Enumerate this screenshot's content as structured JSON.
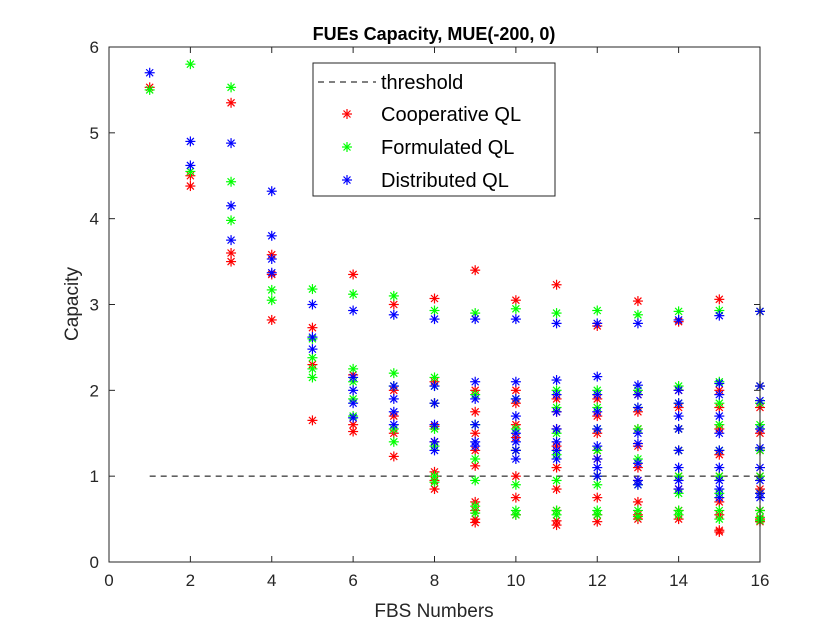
{
  "chart_data": {
    "type": "scatter",
    "title": "FUEs Capacity, MUE(-200, 0)",
    "xlabel": "FBS Numbers",
    "ylabel": "Capacity",
    "xlim": [
      0,
      16
    ],
    "ylim": [
      0,
      6
    ],
    "xticks": [
      0,
      2,
      4,
      6,
      8,
      10,
      12,
      14,
      16
    ],
    "yticks": [
      0,
      1,
      2,
      3,
      4,
      5,
      6
    ],
    "grid": false,
    "legend_position": "top-center",
    "threshold": {
      "name": "threshold",
      "style": "dashed",
      "color": "#000000",
      "x": [
        1,
        16
      ],
      "y": [
        1,
        1
      ]
    },
    "series": [
      {
        "name": "Cooperative QL",
        "color": "#ff0000",
        "marker": "asterisk",
        "points": [
          [
            1,
            5.53
          ],
          [
            2,
            4.5
          ],
          [
            2,
            4.38
          ],
          [
            3,
            5.35
          ],
          [
            3,
            3.6
          ],
          [
            3,
            3.5
          ],
          [
            4,
            3.58
          ],
          [
            4,
            3.35
          ],
          [
            4,
            2.82
          ],
          [
            5,
            2.73
          ],
          [
            5,
            2.3
          ],
          [
            5,
            1.65
          ],
          [
            6,
            3.35
          ],
          [
            6,
            2.18
          ],
          [
            6,
            1.6
          ],
          [
            6,
            1.52
          ],
          [
            7,
            3.0
          ],
          [
            7,
            2.0
          ],
          [
            7,
            1.7
          ],
          [
            7,
            1.5
          ],
          [
            7,
            1.23
          ],
          [
            8,
            3.07
          ],
          [
            8,
            2.1
          ],
          [
            8,
            1.85
          ],
          [
            8,
            1.58
          ],
          [
            8,
            1.4
          ],
          [
            8,
            1.05
          ],
          [
            8,
            0.95
          ],
          [
            8,
            0.85
          ],
          [
            9,
            3.4
          ],
          [
            9,
            2.0
          ],
          [
            9,
            1.75
          ],
          [
            9,
            1.5
          ],
          [
            9,
            1.3
          ],
          [
            9,
            1.12
          ],
          [
            9,
            0.7
          ],
          [
            9,
            0.6
          ],
          [
            9,
            0.5
          ],
          [
            9,
            0.46
          ],
          [
            10,
            3.05
          ],
          [
            10,
            2.0
          ],
          [
            10,
            1.85
          ],
          [
            10,
            1.6
          ],
          [
            10,
            1.45
          ],
          [
            10,
            1.3
          ],
          [
            10,
            1.0
          ],
          [
            10,
            0.75
          ],
          [
            10,
            0.55
          ],
          [
            11,
            3.23
          ],
          [
            11,
            1.9
          ],
          [
            11,
            1.75
          ],
          [
            11,
            1.55
          ],
          [
            11,
            1.35
          ],
          [
            11,
            1.1
          ],
          [
            11,
            0.85
          ],
          [
            11,
            0.6
          ],
          [
            11,
            0.48
          ],
          [
            11,
            0.43
          ],
          [
            12,
            2.75
          ],
          [
            12,
            1.9
          ],
          [
            12,
            1.7
          ],
          [
            12,
            1.5
          ],
          [
            12,
            1.3
          ],
          [
            12,
            1.2
          ],
          [
            12,
            1.0
          ],
          [
            12,
            0.75
          ],
          [
            12,
            0.55
          ],
          [
            12,
            0.47
          ],
          [
            13,
            3.04
          ],
          [
            13,
            1.95
          ],
          [
            13,
            1.75
          ],
          [
            13,
            1.55
          ],
          [
            13,
            1.35
          ],
          [
            13,
            1.1
          ],
          [
            13,
            0.95
          ],
          [
            13,
            0.7
          ],
          [
            13,
            0.55
          ],
          [
            13,
            0.5
          ],
          [
            14,
            2.8
          ],
          [
            14,
            2.0
          ],
          [
            14,
            1.8
          ],
          [
            14,
            1.55
          ],
          [
            14,
            1.3
          ],
          [
            14,
            1.0
          ],
          [
            14,
            0.85
          ],
          [
            14,
            0.6
          ],
          [
            14,
            0.5
          ],
          [
            15,
            3.06
          ],
          [
            15,
            2.0
          ],
          [
            15,
            1.8
          ],
          [
            15,
            1.55
          ],
          [
            15,
            1.25
          ],
          [
            15,
            1.0
          ],
          [
            15,
            0.7
          ],
          [
            15,
            0.55
          ],
          [
            15,
            0.37
          ],
          [
            15,
            0.35
          ],
          [
            16,
            2.92
          ],
          [
            16,
            2.05
          ],
          [
            16,
            1.8
          ],
          [
            16,
            1.5
          ],
          [
            16,
            1.3
          ],
          [
            16,
            1.0
          ],
          [
            16,
            0.85
          ],
          [
            16,
            0.6
          ],
          [
            16,
            0.5
          ],
          [
            16,
            0.47
          ]
        ]
      },
      {
        "name": "Formulated QL",
        "color": "#00ff00",
        "marker": "asterisk",
        "points": [
          [
            1,
            5.5
          ],
          [
            2,
            5.8
          ],
          [
            2,
            4.55
          ],
          [
            3,
            5.53
          ],
          [
            3,
            4.43
          ],
          [
            3,
            3.98
          ],
          [
            4,
            3.17
          ],
          [
            4,
            3.05
          ],
          [
            5,
            3.18
          ],
          [
            5,
            2.6
          ],
          [
            5,
            2.38
          ],
          [
            5,
            2.25
          ],
          [
            5,
            2.15
          ],
          [
            6,
            3.12
          ],
          [
            6,
            2.25
          ],
          [
            6,
            2.1
          ],
          [
            6,
            1.9
          ],
          [
            6,
            1.7
          ],
          [
            7,
            3.1
          ],
          [
            7,
            2.2
          ],
          [
            7,
            2.05
          ],
          [
            7,
            1.55
          ],
          [
            7,
            1.4
          ],
          [
            8,
            2.93
          ],
          [
            8,
            2.15
          ],
          [
            8,
            2.05
          ],
          [
            8,
            1.85
          ],
          [
            8,
            1.55
          ],
          [
            8,
            1.35
          ],
          [
            8,
            1.0
          ],
          [
            8,
            0.93
          ],
          [
            9,
            2.9
          ],
          [
            9,
            1.95
          ],
          [
            9,
            1.6
          ],
          [
            9,
            1.2
          ],
          [
            9,
            0.95
          ],
          [
            9,
            0.65
          ],
          [
            9,
            0.57
          ],
          [
            10,
            2.95
          ],
          [
            10,
            1.9
          ],
          [
            10,
            1.55
          ],
          [
            10,
            1.3
          ],
          [
            10,
            0.9
          ],
          [
            10,
            0.6
          ],
          [
            10,
            0.55
          ],
          [
            11,
            2.9
          ],
          [
            11,
            2.0
          ],
          [
            11,
            1.8
          ],
          [
            11,
            1.5
          ],
          [
            11,
            1.25
          ],
          [
            11,
            0.95
          ],
          [
            11,
            0.6
          ],
          [
            11,
            0.55
          ],
          [
            12,
            2.93
          ],
          [
            12,
            2.0
          ],
          [
            12,
            1.8
          ],
          [
            12,
            1.55
          ],
          [
            12,
            1.3
          ],
          [
            12,
            1.0
          ],
          [
            12,
            0.9
          ],
          [
            12,
            0.6
          ],
          [
            12,
            0.55
          ],
          [
            13,
            2.88
          ],
          [
            13,
            2.0
          ],
          [
            13,
            1.8
          ],
          [
            13,
            1.55
          ],
          [
            13,
            1.2
          ],
          [
            13,
            0.9
          ],
          [
            13,
            0.6
          ],
          [
            13,
            0.53
          ],
          [
            14,
            2.92
          ],
          [
            14,
            2.05
          ],
          [
            14,
            1.85
          ],
          [
            14,
            1.55
          ],
          [
            14,
            1.3
          ],
          [
            14,
            1.0
          ],
          [
            14,
            0.8
          ],
          [
            14,
            0.6
          ],
          [
            14,
            0.55
          ],
          [
            15,
            2.93
          ],
          [
            15,
            2.1
          ],
          [
            15,
            1.85
          ],
          [
            15,
            1.6
          ],
          [
            15,
            1.3
          ],
          [
            15,
            1.0
          ],
          [
            15,
            0.8
          ],
          [
            15,
            0.6
          ],
          [
            15,
            0.5
          ],
          [
            16,
            2.92
          ],
          [
            16,
            2.05
          ],
          [
            16,
            1.85
          ],
          [
            16,
            1.6
          ],
          [
            16,
            1.3
          ],
          [
            16,
            1.0
          ],
          [
            16,
            0.8
          ],
          [
            16,
            0.6
          ],
          [
            16,
            0.52
          ],
          [
            16,
            0.48
          ]
        ]
      },
      {
        "name": "Distributed QL",
        "color": "#0000ff",
        "marker": "asterisk",
        "points": [
          [
            1,
            5.7
          ],
          [
            2,
            4.9
          ],
          [
            2,
            4.62
          ],
          [
            3,
            4.88
          ],
          [
            3,
            4.15
          ],
          [
            3,
            3.75
          ],
          [
            4,
            4.32
          ],
          [
            4,
            3.8
          ],
          [
            4,
            3.53
          ],
          [
            4,
            3.37
          ],
          [
            5,
            3.0
          ],
          [
            5,
            2.62
          ],
          [
            5,
            2.48
          ],
          [
            6,
            2.93
          ],
          [
            6,
            2.15
          ],
          [
            6,
            2.0
          ],
          [
            6,
            1.85
          ],
          [
            6,
            1.68
          ],
          [
            7,
            2.88
          ],
          [
            7,
            2.05
          ],
          [
            7,
            1.9
          ],
          [
            7,
            1.75
          ],
          [
            7,
            1.6
          ],
          [
            8,
            2.83
          ],
          [
            8,
            2.05
          ],
          [
            8,
            1.85
          ],
          [
            8,
            1.6
          ],
          [
            8,
            1.4
          ],
          [
            8,
            1.3
          ],
          [
            9,
            2.83
          ],
          [
            9,
            2.1
          ],
          [
            9,
            1.9
          ],
          [
            9,
            1.6
          ],
          [
            9,
            1.4
          ],
          [
            9,
            1.35
          ],
          [
            10,
            2.83
          ],
          [
            10,
            2.1
          ],
          [
            10,
            1.9
          ],
          [
            10,
            1.7
          ],
          [
            10,
            1.5
          ],
          [
            10,
            1.4
          ],
          [
            10,
            1.3
          ],
          [
            10,
            1.2
          ],
          [
            11,
            2.78
          ],
          [
            11,
            2.12
          ],
          [
            11,
            1.95
          ],
          [
            11,
            1.75
          ],
          [
            11,
            1.55
          ],
          [
            11,
            1.4
          ],
          [
            11,
            1.3
          ],
          [
            11,
            1.2
          ],
          [
            12,
            2.78
          ],
          [
            12,
            2.16
          ],
          [
            12,
            1.95
          ],
          [
            12,
            1.75
          ],
          [
            12,
            1.55
          ],
          [
            12,
            1.35
          ],
          [
            12,
            1.2
          ],
          [
            12,
            1.1
          ],
          [
            12,
            1.0
          ],
          [
            13,
            2.78
          ],
          [
            13,
            2.06
          ],
          [
            13,
            1.95
          ],
          [
            13,
            1.8
          ],
          [
            13,
            1.5
          ],
          [
            13,
            1.38
          ],
          [
            13,
            1.15
          ],
          [
            13,
            0.95
          ],
          [
            13,
            0.9
          ],
          [
            14,
            2.82
          ],
          [
            14,
            2.0
          ],
          [
            14,
            1.85
          ],
          [
            14,
            1.7
          ],
          [
            14,
            1.55
          ],
          [
            14,
            1.3
          ],
          [
            14,
            1.1
          ],
          [
            14,
            0.95
          ],
          [
            14,
            0.85
          ],
          [
            15,
            2.87
          ],
          [
            15,
            2.08
          ],
          [
            15,
            1.95
          ],
          [
            15,
            1.7
          ],
          [
            15,
            1.5
          ],
          [
            15,
            1.3
          ],
          [
            15,
            1.1
          ],
          [
            15,
            0.95
          ],
          [
            15,
            0.85
          ],
          [
            15,
            0.75
          ],
          [
            16,
            2.92
          ],
          [
            16,
            2.05
          ],
          [
            16,
            1.88
          ],
          [
            16,
            1.55
          ],
          [
            16,
            1.33
          ],
          [
            16,
            1.1
          ],
          [
            16,
            0.95
          ],
          [
            16,
            0.8
          ],
          [
            16,
            0.75
          ]
        ]
      }
    ]
  }
}
